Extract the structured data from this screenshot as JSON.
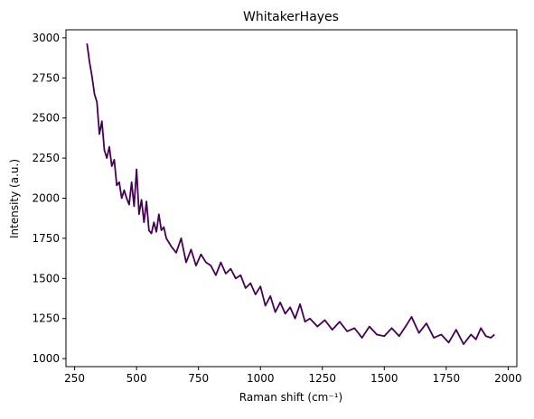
{
  "chart_data": {
    "type": "line",
    "title": "WhitakerHayes",
    "x_label": "Raman shift (cm⁻¹)",
    "y_label": "Intensity (a.u.)",
    "x": [
      300,
      310,
      320,
      330,
      340,
      350,
      360,
      370,
      380,
      390,
      400,
      410,
      420,
      430,
      440,
      450,
      460,
      470,
      480,
      490,
      500,
      510,
      520,
      530,
      540,
      550,
      560,
      570,
      580,
      590,
      600,
      610,
      620,
      640,
      660,
      680,
      700,
      720,
      740,
      760,
      780,
      800,
      820,
      840,
      860,
      880,
      900,
      920,
      940,
      960,
      980,
      1000,
      1020,
      1040,
      1060,
      1080,
      1100,
      1120,
      1140,
      1160,
      1180,
      1200,
      1230,
      1260,
      1290,
      1320,
      1350,
      1380,
      1410,
      1440,
      1470,
      1500,
      1530,
      1560,
      1590,
      1610,
      1640,
      1670,
      1700,
      1730,
      1760,
      1790,
      1820,
      1850,
      1870,
      1890,
      1910,
      1930,
      1945
    ],
    "series": [
      {
        "name": "WhitakerHayes",
        "color": "#440154",
        "values": [
          2965,
          2850,
          2760,
          2650,
          2600,
          2400,
          2480,
          2300,
          2250,
          2320,
          2200,
          2240,
          2080,
          2100,
          2000,
          2050,
          2000,
          1960,
          2100,
          1950,
          2180,
          1900,
          1990,
          1850,
          1980,
          1800,
          1780,
          1850,
          1790,
          1900,
          1800,
          1820,
          1750,
          1700,
          1660,
          1750,
          1600,
          1680,
          1580,
          1650,
          1600,
          1580,
          1520,
          1600,
          1530,
          1560,
          1500,
          1520,
          1440,
          1470,
          1400,
          1450,
          1330,
          1390,
          1290,
          1350,
          1280,
          1320,
          1250,
          1340,
          1230,
          1250,
          1200,
          1240,
          1180,
          1230,
          1170,
          1190,
          1130,
          1200,
          1150,
          1140,
          1190,
          1140,
          1210,
          1260,
          1160,
          1220,
          1130,
          1150,
          1100,
          1180,
          1090,
          1150,
          1120,
          1190,
          1140,
          1130,
          1150
        ]
      }
    ],
    "xlim": [
      215,
      2035
    ],
    "ylim": [
      950,
      3050
    ],
    "xticks": [
      250,
      500,
      750,
      1000,
      1250,
      1500,
      1750,
      2000
    ],
    "yticks": [
      1000,
      1250,
      1500,
      1750,
      2000,
      2250,
      2500,
      2750,
      3000
    ]
  }
}
